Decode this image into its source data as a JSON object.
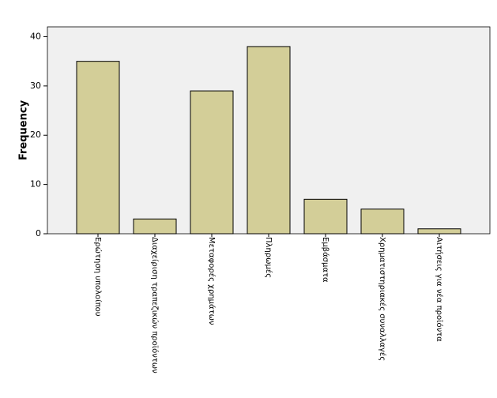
{
  "chart_data": {
    "type": "bar",
    "y_label": "Frequency",
    "categories": [
      "Ερώτηση υπολοίπου",
      "Διαχείριση τραπεζικών προϊόντων",
      "Μεταφορές χρημάτων",
      "Πληρωμές",
      "Εμβάσματα",
      "Χρηματιστηριακές συναλλαγές",
      "Αιτήσεις για νέα προϊόντα"
    ],
    "values": [
      35,
      3,
      29,
      38,
      7,
      5,
      1
    ],
    "color": "#d3ce98",
    "ylim": [
      0,
      42
    ],
    "yticks": [
      0,
      10,
      20,
      30,
      40
    ],
    "grid": false
  }
}
